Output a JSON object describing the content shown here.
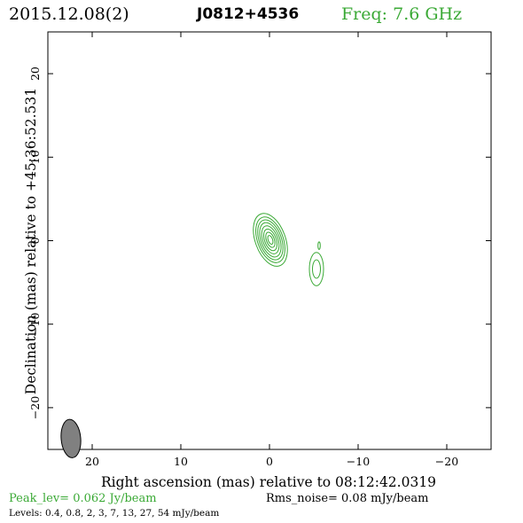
{
  "header": {
    "date": "2015.12.08(2)",
    "source": "J0812+4536",
    "frequency": "Freq: 7.6 GHz"
  },
  "axes": {
    "xlabel": "Right ascension (mas) relative to 08:12:42.0319",
    "ylabel": "Declination (mas) relative to +45:36:52.531",
    "xlim": [
      25,
      -25
    ],
    "ylim": [
      -25,
      25
    ],
    "xticks": [
      {
        "value": 20,
        "label": "20"
      },
      {
        "value": 10,
        "label": "10"
      },
      {
        "value": 0,
        "label": "0"
      },
      {
        "value": -10,
        "label": "−10"
      },
      {
        "value": -20,
        "label": "−20"
      }
    ],
    "yticks": [
      {
        "value": 20,
        "label": "20"
      },
      {
        "value": 10,
        "label": "10"
      },
      {
        "value": 0,
        "label": "0"
      },
      {
        "value": -10,
        "label": "−10"
      },
      {
        "value": -20,
        "label": "−20"
      }
    ]
  },
  "footer": {
    "peak": "Peak_lev=  0.062 Jy/beam",
    "rms": "Rms_noise= 0.08 mJy/beam",
    "levels": "Levels: 0.4, 0.8,   2,   3,   7,  13,  27,  54 mJy/beam"
  },
  "colors": {
    "contour": "#3aa935",
    "beam": "#808080",
    "axes": "#000000"
  },
  "chart_data": {
    "type": "contour",
    "title": "J0812+4536",
    "xlabel": "Right ascension (mas) relative to 08:12:42.0319",
    "ylabel": "Declination (mas) relative to +45:36:52.531",
    "xlim": [
      25,
      -25
    ],
    "ylim": [
      -25,
      25
    ],
    "contour_levels_mJy_per_beam": [
      0.4,
      0.8,
      2,
      3,
      7,
      13,
      27,
      54
    ],
    "peak_Jy_per_beam": 0.062,
    "rms_mJy_per_beam": 0.08,
    "components": [
      {
        "center": [
          -0.1,
          0.1
        ],
        "pa_deg": -20,
        "rings": [
          [
            1.7,
            3.3
          ],
          [
            1.45,
            2.85
          ],
          [
            1.25,
            2.5
          ],
          [
            1.05,
            2.15
          ],
          [
            0.85,
            1.75
          ],
          [
            0.65,
            1.35
          ],
          [
            0.45,
            0.95
          ],
          [
            0.25,
            0.55
          ]
        ]
      },
      {
        "center": [
          -5.3,
          -3.4
        ],
        "pa_deg": 0,
        "rings": [
          [
            0.8,
            2.0
          ],
          [
            0.45,
            1.1
          ]
        ]
      },
      {
        "center": [
          -5.6,
          -0.6
        ],
        "pa_deg": 0,
        "rings": [
          [
            0.13,
            0.45
          ]
        ]
      }
    ],
    "beam": {
      "center": [
        22.4,
        -23.7
      ],
      "major": 2.3,
      "minor": 1.1,
      "pa_deg": -5
    }
  }
}
